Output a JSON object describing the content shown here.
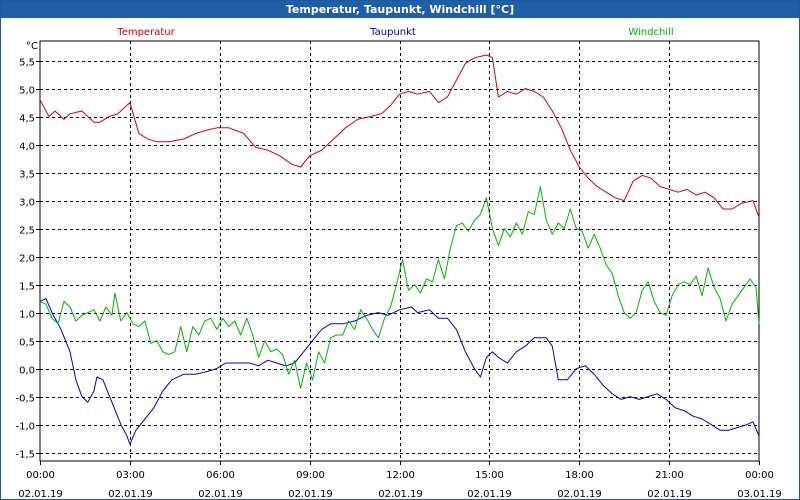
{
  "window": {
    "title": "Temperatur, Taupunkt, Windchill [°C]"
  },
  "chart_data": {
    "type": "line",
    "title": "Temperatur, Taupunkt, Windchill [°C]",
    "ylabel": "°C",
    "xlabel": "",
    "ylim": [
      -1.65,
      5.85
    ],
    "xlim": [
      0,
      24
    ],
    "grid": true,
    "y_ticks": [
      {
        "value": 5.5,
        "label": "5,5"
      },
      {
        "value": 5.0,
        "label": "5,0"
      },
      {
        "value": 4.5,
        "label": "4,5"
      },
      {
        "value": 4.0,
        "label": "4,0"
      },
      {
        "value": 3.5,
        "label": "3,5"
      },
      {
        "value": 3.0,
        "label": "3,0"
      },
      {
        "value": 2.5,
        "label": "2,5"
      },
      {
        "value": 2.0,
        "label": "2,0"
      },
      {
        "value": 1.5,
        "label": "1,5"
      },
      {
        "value": 1.0,
        "label": "1,0"
      },
      {
        "value": 0.5,
        "label": "0,5"
      },
      {
        "value": 0.0,
        "label": "0,0"
      },
      {
        "value": -0.5,
        "label": "-0,5"
      },
      {
        "value": -1.0,
        "label": "-1,0"
      },
      {
        "value": -1.5,
        "label": "-1,5"
      }
    ],
    "x_ticks": [
      {
        "value": 0,
        "time": "00:00",
        "date": "02.01.19"
      },
      {
        "value": 3,
        "time": "03:00",
        "date": "02.01.19"
      },
      {
        "value": 6,
        "time": "06:00",
        "date": "02.01.19"
      },
      {
        "value": 9,
        "time": "09:00",
        "date": "02.01.19"
      },
      {
        "value": 12,
        "time": "12:00",
        "date": "02.01.19"
      },
      {
        "value": 15,
        "time": "15:00",
        "date": "02.01.19"
      },
      {
        "value": 18,
        "time": "18:00",
        "date": "02.01.19"
      },
      {
        "value": 21,
        "time": "21:00",
        "date": "02.01.19"
      },
      {
        "value": 24,
        "time": "00:00",
        "date": "03.01.19"
      }
    ],
    "series": [
      {
        "name": "Temperatur",
        "color": "#d40000",
        "legend_position": "left",
        "points": [
          [
            0,
            4.8
          ],
          [
            0.3,
            4.5
          ],
          [
            0.5,
            4.6
          ],
          [
            0.8,
            4.45
          ],
          [
            1.0,
            4.55
          ],
          [
            1.4,
            4.6
          ],
          [
            1.8,
            4.4
          ],
          [
            2.0,
            4.4
          ],
          [
            2.3,
            4.5
          ],
          [
            2.6,
            4.55
          ],
          [
            3.0,
            4.75
          ],
          [
            3.3,
            4.2
          ],
          [
            3.6,
            4.1
          ],
          [
            3.9,
            4.05
          ],
          [
            4.3,
            4.05
          ],
          [
            4.8,
            4.1
          ],
          [
            5.2,
            4.2
          ],
          [
            5.5,
            4.25
          ],
          [
            5.9,
            4.3
          ],
          [
            6.3,
            4.3
          ],
          [
            6.8,
            4.2
          ],
          [
            7.2,
            3.95
          ],
          [
            7.6,
            3.9
          ],
          [
            8.0,
            3.8
          ],
          [
            8.4,
            3.65
          ],
          [
            8.7,
            3.6
          ],
          [
            9.0,
            3.8
          ],
          [
            9.4,
            3.9
          ],
          [
            9.8,
            4.1
          ],
          [
            10.2,
            4.3
          ],
          [
            10.6,
            4.45
          ],
          [
            11.0,
            4.5
          ],
          [
            11.4,
            4.55
          ],
          [
            11.7,
            4.7
          ],
          [
            12.0,
            4.9
          ],
          [
            12.3,
            4.95
          ],
          [
            12.6,
            4.9
          ],
          [
            13.0,
            4.95
          ],
          [
            13.3,
            4.75
          ],
          [
            13.6,
            4.85
          ],
          [
            13.9,
            5.15
          ],
          [
            14.2,
            5.45
          ],
          [
            14.5,
            5.55
          ],
          [
            14.9,
            5.6
          ],
          [
            15.1,
            5.55
          ],
          [
            15.3,
            4.85
          ],
          [
            15.6,
            4.95
          ],
          [
            15.9,
            4.9
          ],
          [
            16.2,
            5.0
          ],
          [
            16.5,
            4.95
          ],
          [
            16.8,
            4.85
          ],
          [
            17.1,
            4.6
          ],
          [
            17.4,
            4.3
          ],
          [
            17.7,
            3.9
          ],
          [
            18.0,
            3.6
          ],
          [
            18.3,
            3.4
          ],
          [
            18.6,
            3.25
          ],
          [
            18.9,
            3.15
          ],
          [
            19.2,
            3.05
          ],
          [
            19.5,
            3.0
          ],
          [
            19.8,
            3.35
          ],
          [
            20.1,
            3.45
          ],
          [
            20.4,
            3.4
          ],
          [
            20.7,
            3.25
          ],
          [
            21.0,
            3.2
          ],
          [
            21.3,
            3.15
          ],
          [
            21.6,
            3.2
          ],
          [
            21.9,
            3.1
          ],
          [
            22.2,
            3.15
          ],
          [
            22.5,
            3.05
          ],
          [
            22.8,
            2.85
          ],
          [
            23.1,
            2.85
          ],
          [
            23.4,
            2.95
          ],
          [
            23.8,
            3.0
          ],
          [
            24.0,
            2.7
          ]
        ]
      },
      {
        "name": "Taupunkt",
        "color": "#0000c8",
        "legend_position": "center",
        "points": [
          [
            0,
            1.2
          ],
          [
            0.2,
            1.25
          ],
          [
            0.4,
            1.0
          ],
          [
            0.7,
            0.7
          ],
          [
            1.0,
            0.3
          ],
          [
            1.2,
            -0.2
          ],
          [
            1.4,
            -0.5
          ],
          [
            1.6,
            -0.6
          ],
          [
            1.8,
            -0.4
          ],
          [
            1.9,
            -0.15
          ],
          [
            2.1,
            -0.2
          ],
          [
            2.4,
            -0.6
          ],
          [
            2.7,
            -1.0
          ],
          [
            2.9,
            -1.2
          ],
          [
            3.0,
            -1.35
          ],
          [
            3.2,
            -1.1
          ],
          [
            3.5,
            -0.9
          ],
          [
            3.8,
            -0.7
          ],
          [
            4.1,
            -0.4
          ],
          [
            4.4,
            -0.2
          ],
          [
            4.8,
            -0.1
          ],
          [
            5.2,
            -0.1
          ],
          [
            5.6,
            -0.05
          ],
          [
            5.9,
            0.0
          ],
          [
            6.2,
            0.1
          ],
          [
            6.6,
            0.1
          ],
          [
            7.0,
            0.1
          ],
          [
            7.3,
            0.05
          ],
          [
            7.6,
            0.15
          ],
          [
            7.9,
            0.1
          ],
          [
            8.2,
            0.05
          ],
          [
            8.5,
            0.1
          ],
          [
            8.8,
            0.3
          ],
          [
            9.1,
            0.5
          ],
          [
            9.4,
            0.7
          ],
          [
            9.7,
            0.8
          ],
          [
            10.1,
            0.8
          ],
          [
            10.5,
            0.85
          ],
          [
            10.9,
            0.95
          ],
          [
            11.3,
            1.0
          ],
          [
            11.6,
            0.95
          ],
          [
            12.0,
            1.05
          ],
          [
            12.4,
            1.1
          ],
          [
            12.6,
            1.0
          ],
          [
            13.0,
            1.05
          ],
          [
            13.3,
            0.9
          ],
          [
            13.6,
            0.9
          ],
          [
            13.9,
            0.7
          ],
          [
            14.2,
            0.3
          ],
          [
            14.5,
            0.0
          ],
          [
            14.7,
            -0.15
          ],
          [
            14.9,
            0.2
          ],
          [
            15.1,
            0.3
          ],
          [
            15.3,
            0.2
          ],
          [
            15.6,
            0.1
          ],
          [
            15.9,
            0.3
          ],
          [
            16.2,
            0.4
          ],
          [
            16.5,
            0.55
          ],
          [
            16.9,
            0.55
          ],
          [
            17.1,
            0.4
          ],
          [
            17.3,
            -0.2
          ],
          [
            17.6,
            -0.2
          ],
          [
            17.9,
            0.0
          ],
          [
            18.2,
            0.05
          ],
          [
            18.5,
            -0.1
          ],
          [
            18.8,
            -0.3
          ],
          [
            19.1,
            -0.45
          ],
          [
            19.4,
            -0.55
          ],
          [
            19.7,
            -0.5
          ],
          [
            20.0,
            -0.55
          ],
          [
            20.3,
            -0.5
          ],
          [
            20.6,
            -0.45
          ],
          [
            20.9,
            -0.55
          ],
          [
            21.2,
            -0.7
          ],
          [
            21.5,
            -0.75
          ],
          [
            21.8,
            -0.85
          ],
          [
            22.1,
            -0.9
          ],
          [
            22.4,
            -1.0
          ],
          [
            22.7,
            -1.1
          ],
          [
            23.0,
            -1.1
          ],
          [
            23.3,
            -1.05
          ],
          [
            23.6,
            -1.0
          ],
          [
            23.8,
            -0.95
          ],
          [
            24.0,
            -1.2
          ]
        ]
      },
      {
        "name": "Windchill",
        "color": "#00b400",
        "legend_position": "right",
        "points": [
          [
            0,
            1.2
          ],
          [
            0.2,
            1.15
          ],
          [
            0.4,
            0.9
          ],
          [
            0.6,
            0.8
          ],
          [
            0.8,
            1.2
          ],
          [
            1.0,
            1.1
          ],
          [
            1.2,
            0.85
          ],
          [
            1.4,
            0.95
          ],
          [
            1.6,
            1.0
          ],
          [
            1.8,
            1.05
          ],
          [
            2.0,
            0.85
          ],
          [
            2.2,
            1.1
          ],
          [
            2.4,
            0.95
          ],
          [
            2.5,
            1.35
          ],
          [
            2.7,
            0.85
          ],
          [
            2.9,
            1.0
          ],
          [
            3.1,
            0.8
          ],
          [
            3.3,
            0.75
          ],
          [
            3.5,
            0.85
          ],
          [
            3.7,
            0.45
          ],
          [
            3.9,
            0.5
          ],
          [
            4.1,
            0.3
          ],
          [
            4.3,
            0.25
          ],
          [
            4.5,
            0.3
          ],
          [
            4.7,
            0.75
          ],
          [
            4.9,
            0.3
          ],
          [
            5.1,
            0.75
          ],
          [
            5.3,
            0.6
          ],
          [
            5.5,
            0.85
          ],
          [
            5.7,
            0.9
          ],
          [
            5.9,
            0.7
          ],
          [
            6.1,
            0.9
          ],
          [
            6.3,
            0.75
          ],
          [
            6.5,
            0.85
          ],
          [
            6.7,
            0.6
          ],
          [
            6.9,
            0.9
          ],
          [
            7.1,
            0.6
          ],
          [
            7.3,
            0.2
          ],
          [
            7.5,
            0.5
          ],
          [
            7.7,
            0.3
          ],
          [
            7.9,
            0.35
          ],
          [
            8.1,
            0.25
          ],
          [
            8.3,
            -0.1
          ],
          [
            8.5,
            0.15
          ],
          [
            8.7,
            -0.35
          ],
          [
            8.9,
            0.1
          ],
          [
            9.1,
            -0.2
          ],
          [
            9.3,
            0.3
          ],
          [
            9.5,
            0.1
          ],
          [
            9.7,
            0.55
          ],
          [
            9.9,
            0.6
          ],
          [
            10.1,
            0.6
          ],
          [
            10.3,
            0.85
          ],
          [
            10.5,
            0.7
          ],
          [
            10.7,
            1.05
          ],
          [
            10.9,
            0.9
          ],
          [
            11.1,
            0.7
          ],
          [
            11.3,
            0.55
          ],
          [
            11.5,
            0.9
          ],
          [
            11.7,
            1.1
          ],
          [
            11.9,
            1.5
          ],
          [
            12.1,
            1.95
          ],
          [
            12.3,
            1.4
          ],
          [
            12.5,
            1.5
          ],
          [
            12.7,
            1.35
          ],
          [
            12.9,
            1.6
          ],
          [
            13.1,
            1.55
          ],
          [
            13.3,
            1.95
          ],
          [
            13.5,
            1.6
          ],
          [
            13.7,
            2.15
          ],
          [
            13.9,
            2.55
          ],
          [
            14.1,
            2.6
          ],
          [
            14.3,
            2.45
          ],
          [
            14.5,
            2.65
          ],
          [
            14.7,
            2.75
          ],
          [
            14.9,
            3.05
          ],
          [
            15.1,
            2.5
          ],
          [
            15.3,
            2.2
          ],
          [
            15.5,
            2.5
          ],
          [
            15.7,
            2.35
          ],
          [
            15.9,
            2.6
          ],
          [
            16.1,
            2.4
          ],
          [
            16.3,
            2.8
          ],
          [
            16.5,
            2.75
          ],
          [
            16.7,
            3.25
          ],
          [
            16.9,
            2.65
          ],
          [
            17.1,
            2.4
          ],
          [
            17.3,
            2.6
          ],
          [
            17.5,
            2.5
          ],
          [
            17.7,
            2.85
          ],
          [
            17.9,
            2.5
          ],
          [
            18.1,
            2.45
          ],
          [
            18.3,
            2.15
          ],
          [
            18.5,
            2.4
          ],
          [
            18.7,
            2.15
          ],
          [
            18.9,
            1.85
          ],
          [
            19.1,
            1.7
          ],
          [
            19.3,
            1.3
          ],
          [
            19.5,
            1.0
          ],
          [
            19.7,
            0.9
          ],
          [
            19.9,
            1.0
          ],
          [
            20.1,
            1.4
          ],
          [
            20.3,
            1.55
          ],
          [
            20.5,
            1.2
          ],
          [
            20.7,
            1.0
          ],
          [
            20.9,
            0.95
          ],
          [
            21.1,
            1.3
          ],
          [
            21.3,
            1.5
          ],
          [
            21.5,
            1.55
          ],
          [
            21.7,
            1.5
          ],
          [
            21.9,
            1.65
          ],
          [
            22.1,
            1.3
          ],
          [
            22.3,
            1.8
          ],
          [
            22.5,
            1.45
          ],
          [
            22.7,
            1.25
          ],
          [
            22.9,
            0.85
          ],
          [
            23.1,
            1.15
          ],
          [
            23.3,
            1.3
          ],
          [
            23.5,
            1.45
          ],
          [
            23.7,
            1.6
          ],
          [
            23.9,
            1.45
          ],
          [
            24.0,
            0.8
          ]
        ]
      }
    ]
  }
}
